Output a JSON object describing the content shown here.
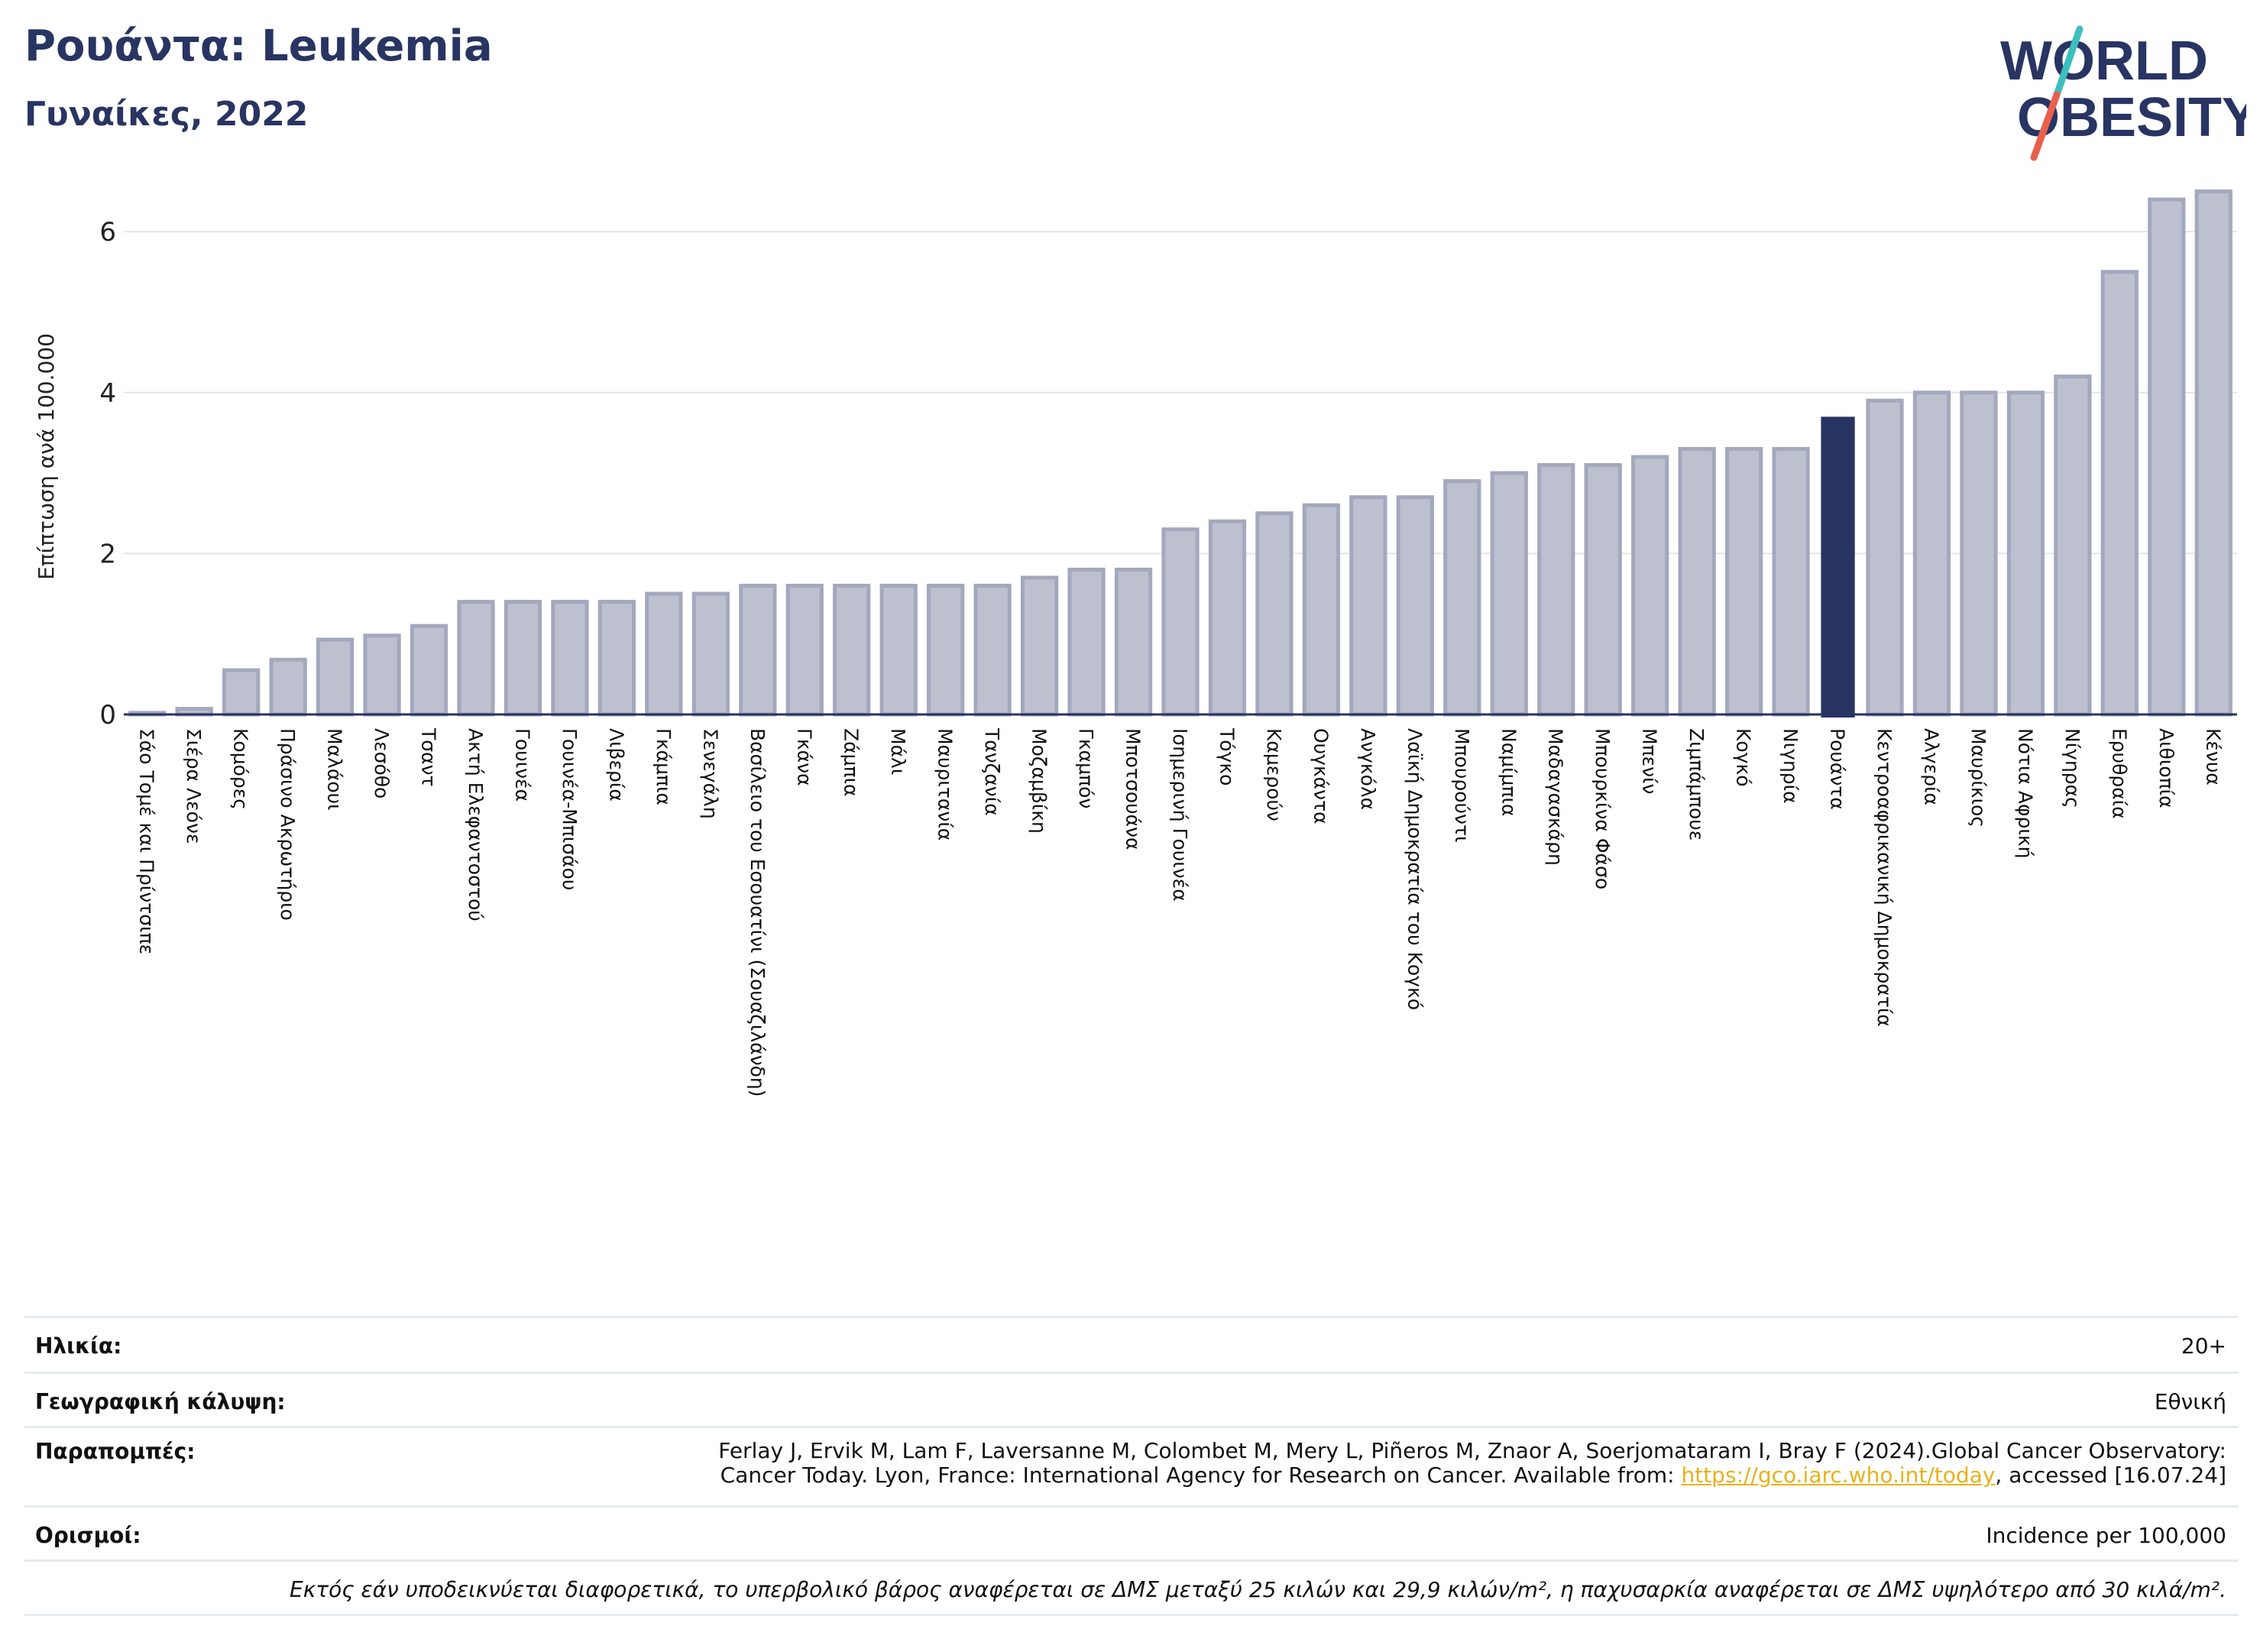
{
  "header": {
    "title": "Ρουάντα: Leukemia",
    "subtitle": "Γυναίκες, 2022"
  },
  "logo": {
    "line1": "WORLD",
    "line2": "OBESITY",
    "colors": {
      "text": "#283462",
      "teal": "#3dbfbf",
      "coral": "#e8604c"
    }
  },
  "chart_data": {
    "type": "bar",
    "ylabel": "Επίπτωση ανά 100.000",
    "ylim": [
      0,
      6.6
    ],
    "yticks": [
      0,
      2,
      4,
      6
    ],
    "grid": true,
    "highlight": "Ρουάντα",
    "colors": {
      "bar": "#bdc0cf",
      "bar_border": "#a3a8be",
      "highlight": "#283462"
    },
    "categories": [
      "Σάο Τομέ και Πρίντσιπε",
      "Σιέρα Λεόνε",
      "Κομόρες",
      "Πράσινο Ακρωτήριο",
      "Μαλάουι",
      "Λεσόθο",
      "Τσαντ",
      "Ακτή Ελεφαντοστού",
      "Γουινέα",
      "Γουινέα-Μπισάου",
      "Λιβερία",
      "Γκάμπια",
      "Σενεγάλη",
      "Βασίλειο του Εσουατίνι (Σουαζιλάνδη)",
      "Γκάνα",
      "Ζάμπια",
      "Μάλι",
      "Μαυριτανία",
      "Τανζανία",
      "Μοζαμβίκη",
      "Γκαμπόν",
      "Μποτσουάνα",
      "Ισημερινή Γουινέα",
      "Τόγκο",
      "Καμερούν",
      "Ουγκάντα",
      "Ανγκόλα",
      "Λαϊκή Δημοκρατία του Κογκό",
      "Μπουρούντι",
      "Ναμίμπια",
      "Μαδαγασκάρη",
      "Μπουρκίνα Φάσο",
      "Μπενίν",
      "Ζιμπάμπουε",
      "Κογκό",
      "Νιγηρία",
      "Ρουάντα",
      "Κεντροαφρικανική Δημοκρατία",
      "Αλγερία",
      "Μαυρίκιος",
      "Νότια Αφρική",
      "Νίγηρας",
      "Ερυθραία",
      "Αιθιοπία",
      "Κένυα"
    ],
    "values": [
      0.02,
      0.07,
      0.55,
      0.68,
      0.93,
      0.98,
      1.1,
      1.4,
      1.4,
      1.4,
      1.4,
      1.5,
      1.5,
      1.6,
      1.6,
      1.6,
      1.6,
      1.6,
      1.6,
      1.7,
      1.8,
      1.8,
      2.3,
      2.4,
      2.5,
      2.6,
      2.7,
      2.7,
      2.9,
      3.0,
      3.1,
      3.1,
      3.2,
      3.3,
      3.3,
      3.3,
      3.7,
      3.9,
      4.0,
      4.0,
      4.0,
      4.2,
      5.5,
      6.4,
      6.5
    ]
  },
  "info": {
    "age_label": "Ηλικία:",
    "age_value": "20+",
    "coverage_label": "Γεωγραφική κάλυψη:",
    "coverage_value": "Εθνική",
    "refs_label": "Παραπομπές:",
    "refs_line1": "Ferlay J, Ervik M, Lam F, Laversanne M, Colombet M, Mery L, Piñeros M, Znaor A, Soerjomataram I, Bray F (2024).Global Cancer Observatory:",
    "refs_line2_pre": "Cancer Today. Lyon, France: International Agency for Research on Cancer. Available from: ",
    "refs_link": "https://gco.iarc.who.int/today",
    "refs_line2_post": ", accessed [16.07.24]",
    "defs_label": "Ορισμοί:",
    "defs_value": "Incidence per 100,000",
    "note": "Εκτός εάν υποδεικνύεται διαφορετικά, το υπερβολικό βάρος αναφέρεται σε ΔΜΣ μεταξύ 25 κιλών και 29,9 κιλών/m², η παχυσαρκία αναφέρεται σε ΔΜΣ υψηλότερο από 30 κιλά/m²."
  }
}
